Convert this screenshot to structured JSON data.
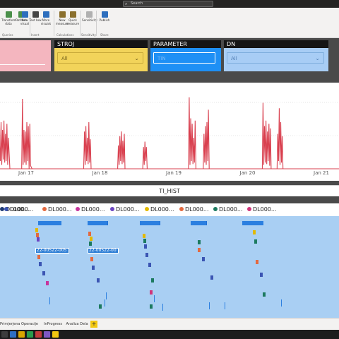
{
  "titlebar": {
    "search_placeholder": "Search"
  },
  "ribbon": {
    "buttons": [
      {
        "label": "Transform data",
        "icon": "transform-icon",
        "color": "#4a8f4a"
      },
      {
        "label": "Refresh",
        "icon": "refresh-icon",
        "color": "#4a8f4a"
      },
      {
        "label": "New visual",
        "icon": "new-visual-icon",
        "color": "#2d6ebd"
      },
      {
        "label": "Text box",
        "icon": "text-box-icon",
        "color": "#444444"
      },
      {
        "label": "More visuals",
        "icon": "more-visuals-icon",
        "color": "#2d6ebd"
      },
      {
        "label": "New measure",
        "icon": "new-measure-icon",
        "color": "#8a6f2d"
      },
      {
        "label": "Quick measure",
        "icon": "quick-measure-icon",
        "color": "#8a6f2d"
      },
      {
        "label": "Sensitivity",
        "icon": "sensitivity-icon",
        "color": "#b0b0b0"
      },
      {
        "label": "Publish",
        "icon": "publish-icon",
        "color": "#2d6ebd"
      }
    ],
    "groups": [
      "Queries",
      "Insert",
      "Calculations",
      "Sensitivity",
      "Share"
    ]
  },
  "slicers": [
    {
      "title": "",
      "value": "",
      "bg": "#f4b6bf",
      "header": false
    },
    {
      "title": "STROJ",
      "value": "All",
      "bg": "#f2d35a"
    },
    {
      "title": "PARAMETER",
      "value": "TIN",
      "bg": "#1e90f5",
      "boxed": true
    },
    {
      "title": "DN",
      "value": "All",
      "bg": "#a8cdf5"
    }
  ],
  "chart_data": [
    {
      "type": "line",
      "title": "",
      "x_ticks": [
        "Jan 17",
        "Jan 18",
        "Jan 19",
        "Jan 20",
        "Jan 21"
      ],
      "color": "#d9404f",
      "series": [
        {
          "values": [
            [
              16.62,
              0
            ],
            [
              16.63,
              55
            ],
            [
              16.65,
              10
            ],
            [
              16.66,
              60
            ],
            [
              16.67,
              5
            ],
            [
              16.68,
              50
            ],
            [
              16.69,
              12
            ],
            [
              16.7,
              62
            ],
            [
              16.71,
              8
            ],
            [
              16.72,
              45
            ],
            [
              16.73,
              10
            ],
            [
              16.74,
              58
            ],
            [
              16.75,
              5
            ],
            [
              16.76,
              40
            ],
            [
              16.78,
              0
            ],
            [
              16.94,
              0
            ],
            [
              16.95,
              90
            ],
            [
              16.96,
              5
            ],
            [
              16.97,
              50
            ],
            [
              16.98,
              8
            ],
            [
              16.99,
              48
            ],
            [
              17.0,
              5
            ],
            [
              17.01,
              60
            ],
            [
              17.02,
              10
            ],
            [
              17.03,
              55
            ],
            [
              17.04,
              0
            ],
            [
              17.05,
              58
            ],
            [
              17.06,
              4
            ],
            [
              17.08,
              0
            ],
            [
              17.78,
              0
            ],
            [
              17.79,
              48
            ],
            [
              17.8,
              5
            ],
            [
              17.81,
              55
            ],
            [
              17.82,
              10
            ],
            [
              17.83,
              40
            ],
            [
              17.84,
              6
            ],
            [
              17.85,
              60
            ],
            [
              17.86,
              8
            ],
            [
              17.87,
              38
            ],
            [
              17.88,
              0
            ],
            [
              18.24,
              0
            ],
            [
              18.25,
              30
            ],
            [
              18.26,
              5
            ],
            [
              18.27,
              42
            ],
            [
              18.28,
              10
            ],
            [
              18.29,
              48
            ],
            [
              18.3,
              6
            ],
            [
              18.31,
              36
            ],
            [
              18.32,
              8
            ],
            [
              18.33,
              45
            ],
            [
              18.34,
              0
            ],
            [
              18.58,
              0
            ],
            [
              18.59,
              28
            ],
            [
              18.6,
              5
            ],
            [
              18.61,
              35
            ],
            [
              18.62,
              10
            ],
            [
              18.63,
              28
            ],
            [
              18.64,
              0
            ],
            [
              19.2,
              0
            ],
            [
              19.21,
              92
            ],
            [
              19.22,
              5
            ],
            [
              19.23,
              65
            ],
            [
              19.24,
              10
            ],
            [
              19.25,
              58
            ],
            [
              19.26,
              6
            ],
            [
              19.27,
              40
            ],
            [
              19.28,
              8
            ],
            [
              19.29,
              62
            ],
            [
              19.3,
              0
            ],
            [
              19.4,
              0
            ],
            [
              19.41,
              45
            ],
            [
              19.42,
              8
            ],
            [
              19.43,
              55
            ],
            [
              19.44,
              5
            ],
            [
              19.45,
              60
            ],
            [
              19.46,
              10
            ],
            [
              19.47,
              76
            ],
            [
              19.48,
              0
            ],
            [
              20.2,
              0
            ],
            [
              20.21,
              85
            ],
            [
              20.22,
              5
            ],
            [
              20.23,
              55
            ],
            [
              20.24,
              8
            ],
            [
              20.25,
              62
            ],
            [
              20.26,
              6
            ],
            [
              20.27,
              48
            ],
            [
              20.28,
              10
            ],
            [
              20.29,
              58
            ],
            [
              20.3,
              4
            ],
            [
              20.31,
              52
            ],
            [
              20.32,
              0
            ],
            [
              20.4,
              0
            ],
            [
              20.41,
              45
            ],
            [
              20.42,
              10
            ],
            [
              20.43,
              78
            ],
            [
              20.44,
              5
            ],
            [
              20.45,
              60
            ],
            [
              20.46,
              8
            ],
            [
              20.47,
              42
            ],
            [
              20.48,
              0
            ],
            [
              21.0,
              0
            ]
          ]
        }
      ]
    }
  ],
  "timeline": {
    "title": "TI_HIST",
    "legend": [
      {
        "label": "DL000...",
        "color": "#1f3a73"
      },
      {
        "label": "DL000...",
        "color": "#3b55b3"
      },
      {
        "label": "DL000...",
        "color": "#e3693f"
      },
      {
        "label": "DL000...",
        "color": "#c7359c"
      },
      {
        "label": "DL000...",
        "color": "#6b45c1"
      },
      {
        "label": "DL000...",
        "color": "#e2b900"
      },
      {
        "label": "DL000...",
        "color": "#1c7a5f"
      },
      {
        "label": "DL000...",
        "color": "#d0357a"
      },
      {
        "label": "DL000...",
        "color": "#2fb5d8"
      }
    ],
    "labels": [
      "22-00522-005",
      "22-00522-00"
    ]
  },
  "tabs": [
    "Primjerjena",
    "Operacije",
    "InProgress",
    "Analiza Dela"
  ],
  "add_tab_label": "+"
}
